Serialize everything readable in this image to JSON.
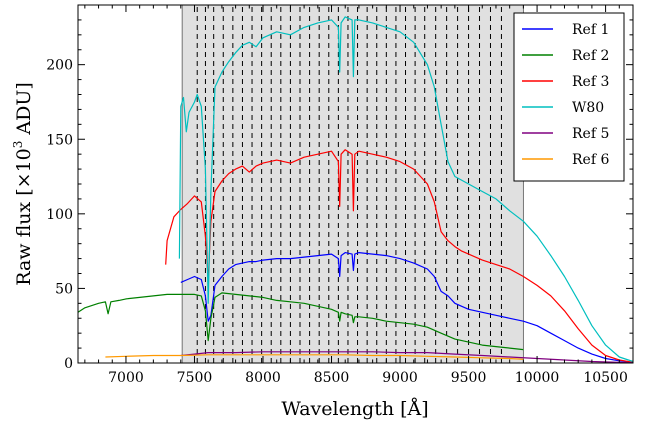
{
  "chart_data": {
    "type": "line",
    "xlabel": "Wavelength [Å]",
    "ylabel_main": "Raw flux [×10",
    "ylabel_exp": "3",
    "ylabel_tail": " ADU]",
    "xlim": [
      6650,
      10700
    ],
    "ylim": [
      0,
      240
    ],
    "xticks": [
      7000,
      7500,
      8000,
      8500,
      9000,
      9500,
      10000,
      10500
    ],
    "yticks": [
      0,
      50,
      100,
      150,
      200
    ],
    "shaded_region": [
      7410,
      9900
    ],
    "dashed_lines": [
      7520,
      7580,
      7640,
      7710,
      7780,
      7850,
      7920,
      7990,
      8060,
      8130,
      8200,
      8270,
      8340,
      8410,
      8480,
      8550,
      8620,
      8690,
      8760,
      8830,
      8900,
      8970,
      9040,
      9110,
      9180,
      9260,
      9340,
      9420,
      9500,
      9580,
      9660,
      9740
    ],
    "legend_position": "top-right",
    "series": [
      {
        "name": "Ref 1",
        "color": "#0000ff",
        "points": [
          [
            7400,
            54
          ],
          [
            7450,
            56
          ],
          [
            7500,
            58
          ],
          [
            7550,
            56
          ],
          [
            7580,
            45
          ],
          [
            7600,
            28
          ],
          [
            7620,
            32
          ],
          [
            7650,
            52
          ],
          [
            7700,
            58
          ],
          [
            7750,
            63
          ],
          [
            7800,
            66
          ],
          [
            7850,
            67
          ],
          [
            7900,
            68
          ],
          [
            7950,
            68
          ],
          [
            8000,
            69
          ],
          [
            8100,
            70
          ],
          [
            8200,
            70
          ],
          [
            8300,
            71
          ],
          [
            8400,
            72
          ],
          [
            8500,
            73
          ],
          [
            8550,
            70
          ],
          [
            8560,
            58
          ],
          [
            8570,
            72
          ],
          [
            8600,
            74
          ],
          [
            8650,
            73
          ],
          [
            8660,
            62
          ],
          [
            8670,
            73
          ],
          [
            8700,
            74
          ],
          [
            8800,
            73
          ],
          [
            8900,
            72
          ],
          [
            9000,
            70
          ],
          [
            9100,
            67
          ],
          [
            9200,
            63
          ],
          [
            9250,
            58
          ],
          [
            9300,
            48
          ],
          [
            9350,
            45
          ],
          [
            9400,
            40
          ],
          [
            9450,
            38
          ],
          [
            9500,
            36
          ],
          [
            9600,
            34
          ],
          [
            9700,
            32
          ],
          [
            9800,
            30
          ],
          [
            9900,
            28
          ],
          [
            10000,
            25
          ],
          [
            10100,
            20
          ],
          [
            10200,
            15
          ],
          [
            10300,
            10
          ],
          [
            10400,
            6
          ],
          [
            10500,
            3
          ],
          [
            10600,
            1.5
          ],
          [
            10700,
            0.5
          ]
        ]
      },
      {
        "name": "Ref 2",
        "color": "#008000",
        "points": [
          [
            6650,
            34
          ],
          [
            6700,
            37
          ],
          [
            6800,
            40
          ],
          [
            6850,
            41
          ],
          [
            6870,
            33
          ],
          [
            6890,
            41
          ],
          [
            6950,
            42
          ],
          [
            7000,
            43
          ],
          [
            7100,
            44
          ],
          [
            7200,
            45
          ],
          [
            7300,
            46
          ],
          [
            7400,
            46
          ],
          [
            7500,
            46
          ],
          [
            7550,
            45
          ],
          [
            7580,
            35
          ],
          [
            7600,
            15
          ],
          [
            7620,
            30
          ],
          [
            7650,
            44
          ],
          [
            7700,
            47
          ],
          [
            7800,
            46
          ],
          [
            7900,
            45
          ],
          [
            8000,
            44
          ],
          [
            8100,
            42
          ],
          [
            8200,
            41
          ],
          [
            8300,
            40
          ],
          [
            8400,
            38
          ],
          [
            8500,
            36
          ],
          [
            8550,
            34
          ],
          [
            8560,
            28
          ],
          [
            8570,
            34
          ],
          [
            8600,
            33
          ],
          [
            8650,
            32
          ],
          [
            8660,
            27
          ],
          [
            8670,
            31
          ],
          [
            8700,
            31
          ],
          [
            8800,
            30
          ],
          [
            8900,
            28
          ],
          [
            9000,
            27
          ],
          [
            9100,
            26
          ],
          [
            9200,
            24
          ],
          [
            9300,
            20
          ],
          [
            9400,
            16
          ],
          [
            9500,
            14
          ],
          [
            9600,
            12
          ],
          [
            9700,
            11
          ],
          [
            9800,
            10
          ],
          [
            9900,
            9
          ]
        ]
      },
      {
        "name": "Ref 3",
        "color": "#ff0000",
        "points": [
          [
            7290,
            66
          ],
          [
            7300,
            82
          ],
          [
            7350,
            98
          ],
          [
            7400,
            103
          ],
          [
            7450,
            107
          ],
          [
            7500,
            112
          ],
          [
            7550,
            108
          ],
          [
            7580,
            85
          ],
          [
            7600,
            55
          ],
          [
            7620,
            95
          ],
          [
            7650,
            115
          ],
          [
            7700,
            122
          ],
          [
            7750,
            127
          ],
          [
            7800,
            130
          ],
          [
            7850,
            132
          ],
          [
            7900,
            128
          ],
          [
            7950,
            132
          ],
          [
            8000,
            134
          ],
          [
            8100,
            136
          ],
          [
            8200,
            134
          ],
          [
            8300,
            138
          ],
          [
            8400,
            140
          ],
          [
            8500,
            142
          ],
          [
            8550,
            135
          ],
          [
            8560,
            105
          ],
          [
            8570,
            140
          ],
          [
            8600,
            143
          ],
          [
            8650,
            140
          ],
          [
            8660,
            102
          ],
          [
            8670,
            140
          ],
          [
            8700,
            142
          ],
          [
            8800,
            140
          ],
          [
            8900,
            138
          ],
          [
            9000,
            135
          ],
          [
            9100,
            130
          ],
          [
            9200,
            120
          ],
          [
            9250,
            108
          ],
          [
            9300,
            88
          ],
          [
            9350,
            82
          ],
          [
            9400,
            78
          ],
          [
            9450,
            75
          ],
          [
            9500,
            73
          ],
          [
            9600,
            69
          ],
          [
            9700,
            66
          ],
          [
            9800,
            63
          ],
          [
            9900,
            58
          ],
          [
            10000,
            52
          ],
          [
            10100,
            45
          ],
          [
            10200,
            35
          ],
          [
            10300,
            23
          ],
          [
            10400,
            12
          ],
          [
            10500,
            5
          ],
          [
            10600,
            2
          ],
          [
            10700,
            0.5
          ]
        ]
      },
      {
        "name": "W80",
        "color": "#00bfbf",
        "points": [
          [
            7390,
            70
          ],
          [
            7400,
            172
          ],
          [
            7420,
            178
          ],
          [
            7440,
            155
          ],
          [
            7460,
            168
          ],
          [
            7500,
            175
          ],
          [
            7520,
            180
          ],
          [
            7550,
            172
          ],
          [
            7580,
            130
          ],
          [
            7600,
            40
          ],
          [
            7620,
            115
          ],
          [
            7650,
            185
          ],
          [
            7700,
            195
          ],
          [
            7750,
            202
          ],
          [
            7800,
            208
          ],
          [
            7850,
            213
          ],
          [
            7900,
            215
          ],
          [
            7950,
            212
          ],
          [
            8000,
            218
          ],
          [
            8100,
            222
          ],
          [
            8200,
            220
          ],
          [
            8300,
            225
          ],
          [
            8400,
            228
          ],
          [
            8500,
            230
          ],
          [
            8550,
            225
          ],
          [
            8560,
            195
          ],
          [
            8570,
            228
          ],
          [
            8600,
            232
          ],
          [
            8650,
            230
          ],
          [
            8660,
            192
          ],
          [
            8670,
            230
          ],
          [
            8700,
            230
          ],
          [
            8800,
            228
          ],
          [
            8900,
            225
          ],
          [
            9000,
            222
          ],
          [
            9100,
            215
          ],
          [
            9200,
            200
          ],
          [
            9250,
            185
          ],
          [
            9300,
            160
          ],
          [
            9350,
            135
          ],
          [
            9400,
            125
          ],
          [
            9500,
            120
          ],
          [
            9600,
            115
          ],
          [
            9700,
            110
          ],
          [
            9800,
            102
          ],
          [
            9900,
            95
          ],
          [
            10000,
            85
          ],
          [
            10100,
            72
          ],
          [
            10200,
            58
          ],
          [
            10300,
            42
          ],
          [
            10400,
            25
          ],
          [
            10500,
            12
          ],
          [
            10600,
            4
          ],
          [
            10700,
            1
          ]
        ]
      },
      {
        "name": "Ref 5",
        "color": "#800080",
        "points": [
          [
            7400,
            5
          ],
          [
            7500,
            6
          ],
          [
            7600,
            7
          ],
          [
            7700,
            7
          ],
          [
            7800,
            7
          ],
          [
            8000,
            7.5
          ],
          [
            8200,
            7.5
          ],
          [
            8400,
            7.5
          ],
          [
            8600,
            7.5
          ],
          [
            8800,
            7.5
          ],
          [
            9000,
            7
          ],
          [
            9200,
            7
          ],
          [
            9400,
            6
          ],
          [
            9600,
            5
          ],
          [
            9800,
            4
          ],
          [
            10000,
            3
          ],
          [
            10200,
            2
          ],
          [
            10400,
            1
          ],
          [
            10600,
            0.5
          ],
          [
            10700,
            0.2
          ]
        ]
      },
      {
        "name": "Ref 6",
        "color": "#ff9900",
        "points": [
          [
            6850,
            4
          ],
          [
            7000,
            4.5
          ],
          [
            7200,
            5
          ],
          [
            7400,
            5
          ],
          [
            7600,
            5.5
          ],
          [
            7800,
            5.5
          ],
          [
            8000,
            5.5
          ],
          [
            8200,
            5.5
          ],
          [
            8400,
            5.5
          ],
          [
            8600,
            5.5
          ],
          [
            8800,
            5
          ],
          [
            9000,
            5
          ],
          [
            9200,
            4.5
          ],
          [
            9400,
            4
          ],
          [
            9600,
            3.5
          ],
          [
            9800,
            3
          ],
          [
            9900,
            2.5
          ]
        ]
      }
    ]
  }
}
